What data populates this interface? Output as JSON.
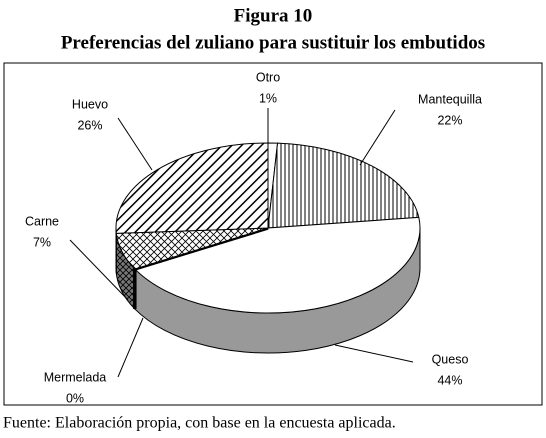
{
  "chart_data": {
    "type": "pie",
    "title": "Figura 10",
    "subtitle": "Preferencias del zuliano para sustituir los embutidos",
    "categories": [
      "Otro",
      "Mantequilla",
      "Queso",
      "Mermelada",
      "Carne",
      "Huevo"
    ],
    "values": [
      1,
      22,
      44,
      0,
      7,
      26
    ],
    "value_labels": [
      "1%",
      "22%",
      "44%",
      "0%",
      "7%",
      "26%"
    ],
    "note": "Fuente: Elaboración propia, con base en la encuesta aplicada."
  }
}
